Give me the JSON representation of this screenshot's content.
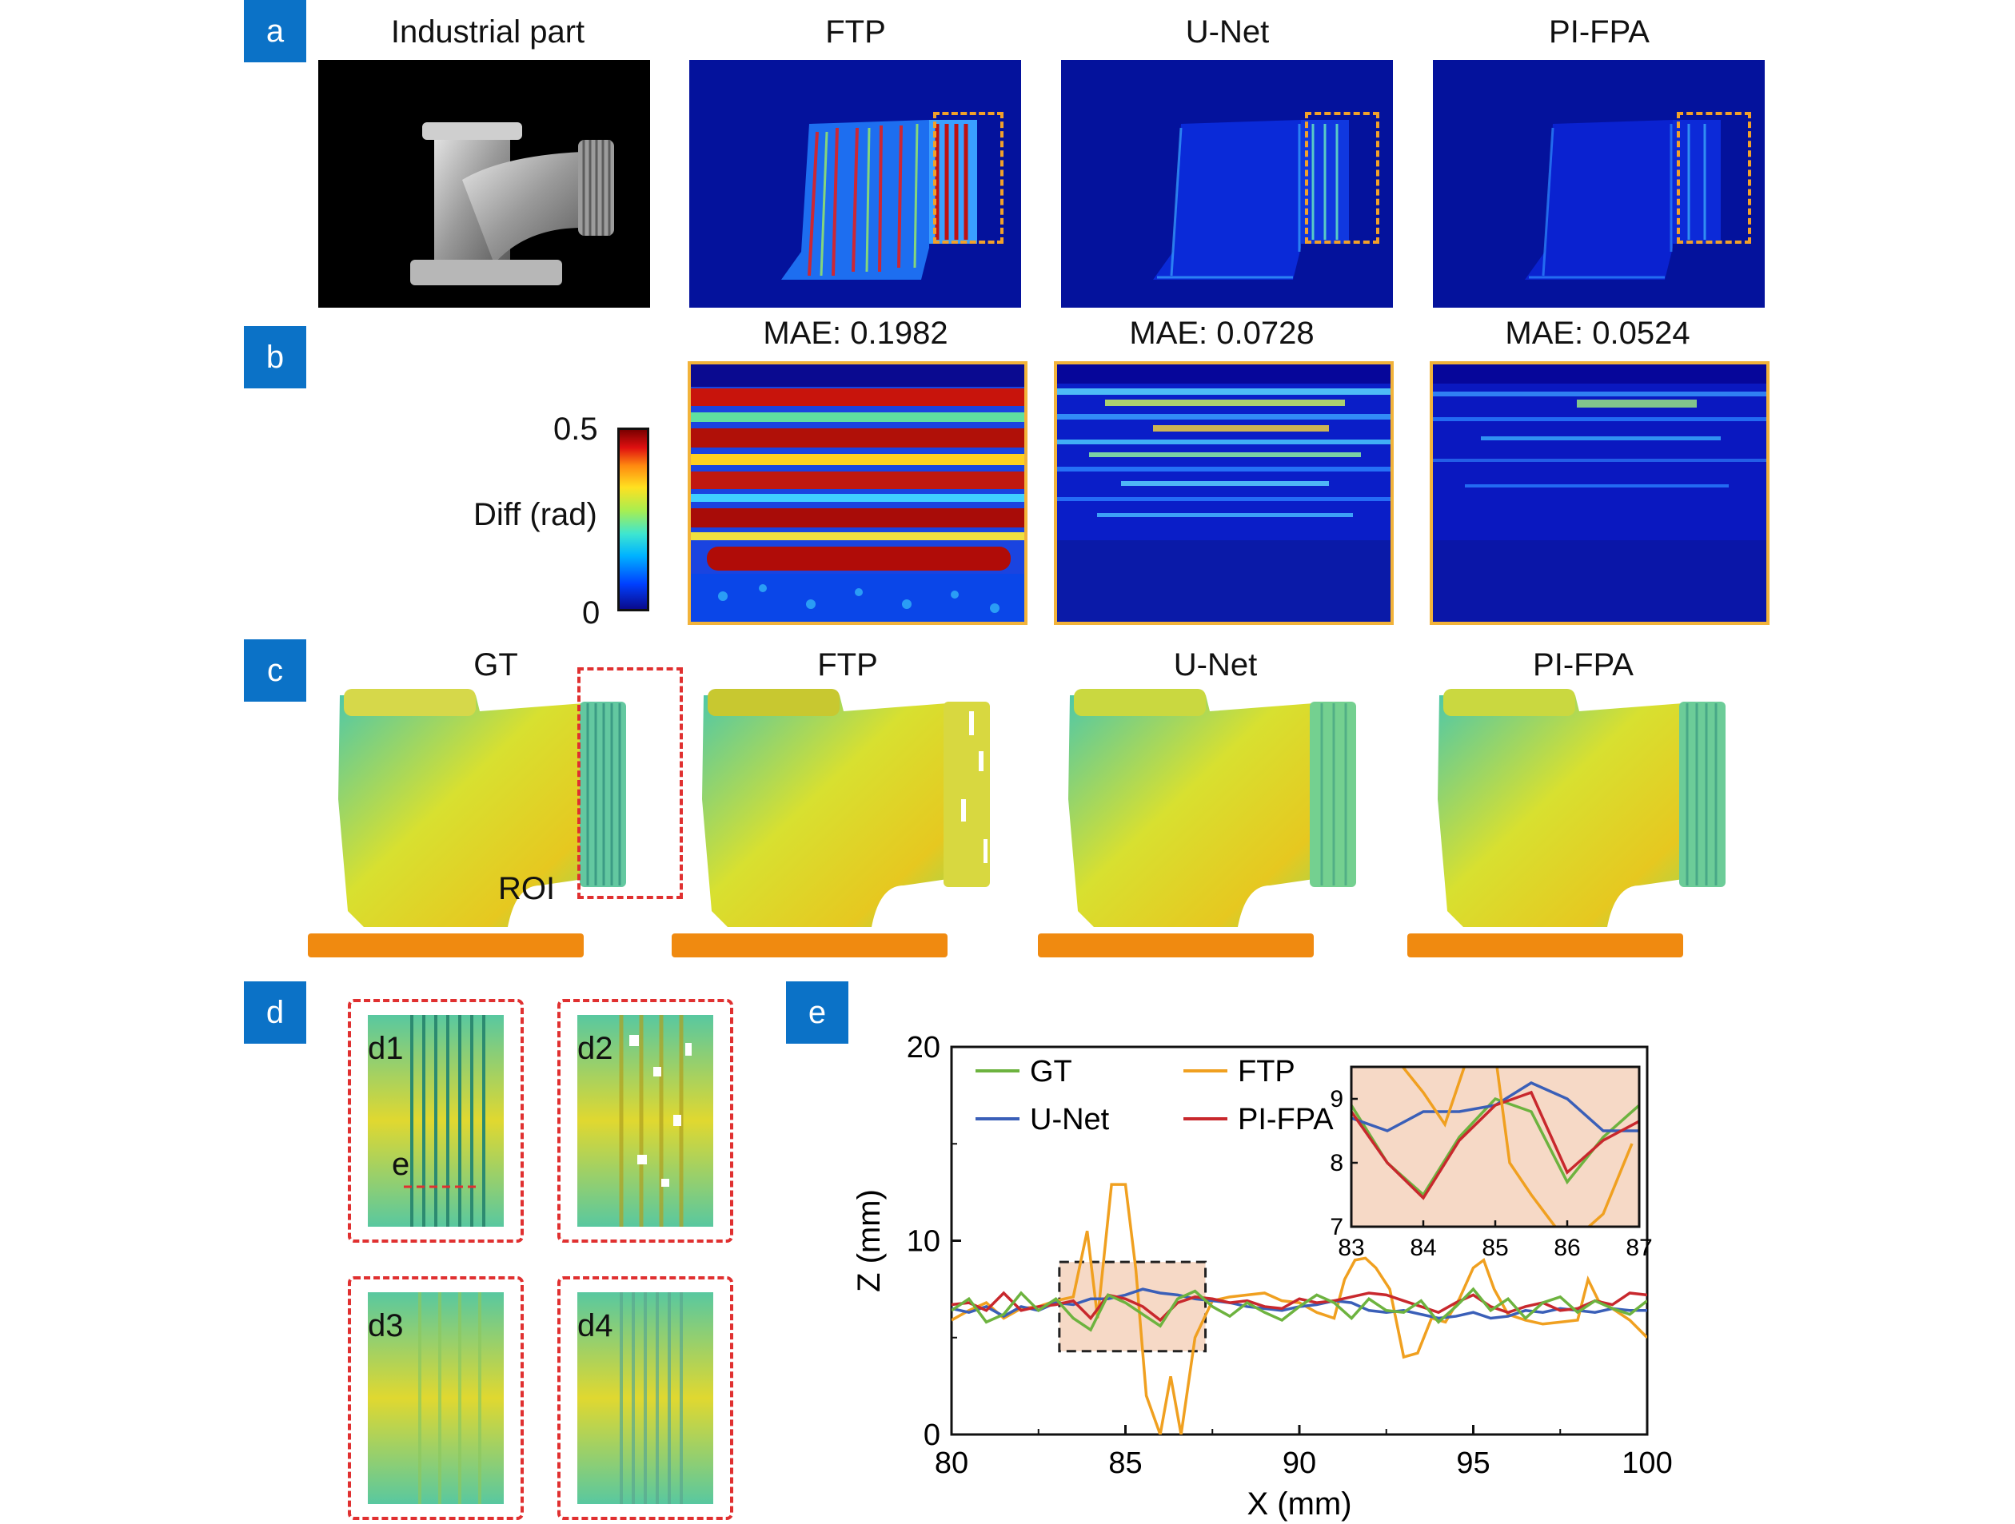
{
  "panels": {
    "a": {
      "tag": "a",
      "titles": [
        "Industrial part",
        "FTP",
        "U-Net",
        "PI-FPA"
      ]
    },
    "b": {
      "tag": "b",
      "mae": [
        "MAE: 0.1982",
        "MAE: 0.0728",
        "MAE: 0.0524"
      ],
      "colorbar": {
        "label": "Diff (rad)",
        "max": "0.5",
        "min": "0"
      }
    },
    "c": {
      "tag": "c",
      "titles": [
        "GT",
        "FTP",
        "U-Net",
        "PI-FPA"
      ],
      "roi_label": "ROI"
    },
    "d": {
      "tag": "d",
      "insets": [
        "d1",
        "d2",
        "d3",
        "d4"
      ],
      "profile_label": "e"
    },
    "e": {
      "tag": "e"
    }
  },
  "chart_data": {
    "type": "line",
    "xlabel": "X (mm)",
    "ylabel": "Z (mm)",
    "xlim": [
      80,
      100
    ],
    "ylim": [
      0,
      20
    ],
    "xticks": [
      "80",
      "85",
      "90",
      "95",
      "100"
    ],
    "yticks": [
      "0",
      "10",
      "20"
    ],
    "legend_position": "top-left",
    "colors": {
      "GT": "#6db33f",
      "FTP": "#f0a020",
      "U-Net": "#3a5fb8",
      "PI-FPA": "#c8282d"
    },
    "series": [
      {
        "name": "GT",
        "x": [
          80,
          80.5,
          81,
          81.5,
          82,
          82.5,
          83,
          83.5,
          84,
          84.5,
          85,
          85.5,
          86,
          86.5,
          87,
          87.5,
          88,
          88.5,
          89,
          89.5,
          90,
          90.5,
          91,
          91.5,
          92,
          92.5,
          93,
          93.5,
          94,
          94.5,
          95,
          95.5,
          96,
          96.5,
          97,
          97.5,
          98,
          98.5,
          99,
          99.5,
          100
        ],
        "y": [
          6.4,
          7.0,
          5.8,
          6.2,
          7.3,
          6.4,
          7.0,
          6.0,
          5.4,
          7.2,
          6.8,
          6.2,
          5.6,
          7.0,
          7.4,
          6.6,
          6.1,
          6.8,
          6.3,
          5.9,
          6.6,
          7.2,
          6.8,
          6.0,
          7.0,
          6.4,
          6.3,
          6.9,
          5.8,
          6.6,
          7.5,
          6.4,
          7.0,
          6.0,
          6.8,
          7.1,
          6.3,
          6.9,
          6.5,
          6.2,
          6.9
        ]
      },
      {
        "name": "FTP",
        "x": [
          80,
          80.5,
          81,
          81.5,
          82,
          82.5,
          83,
          83.5,
          83.9,
          84.2,
          84.6,
          85,
          85.3,
          85.6,
          86,
          86.3,
          86.6,
          87,
          87.5,
          88,
          88.5,
          89,
          89.5,
          90,
          90.5,
          91,
          91.3,
          91.6,
          91.9,
          92.2,
          92.6,
          93,
          93.4,
          93.8,
          94.2,
          94.6,
          95,
          95.3,
          95.6,
          96,
          96.5,
          97,
          97.5,
          98,
          98.3,
          98.6,
          99,
          99.5,
          100
        ],
        "y": [
          5.9,
          6.4,
          6.8,
          6.0,
          6.5,
          6.6,
          6.9,
          7.1,
          10.5,
          6.0,
          12.9,
          12.9,
          8.5,
          2.0,
          0,
          3.0,
          0,
          5.0,
          6.9,
          7.1,
          7.2,
          7.3,
          6.9,
          6.8,
          6.3,
          6.0,
          8.0,
          9.0,
          9.1,
          8.6,
          7.5,
          4.0,
          4.2,
          6.0,
          5.8,
          7.0,
          8.6,
          9.0,
          7.5,
          6.2,
          5.9,
          5.7,
          5.8,
          5.9,
          8.0,
          6.9,
          6.5,
          5.9,
          5.0
        ]
      },
      {
        "name": "U-Net",
        "x": [
          80,
          80.5,
          81,
          81.5,
          82,
          82.5,
          83,
          83.5,
          84,
          84.5,
          85,
          85.5,
          86,
          86.5,
          87,
          87.5,
          88,
          88.5,
          89,
          89.5,
          90,
          90.5,
          91,
          91.5,
          92,
          92.5,
          93,
          93.5,
          94,
          94.5,
          95,
          95.5,
          96,
          96.5,
          97,
          97.5,
          98,
          98.5,
          99,
          99.5,
          100
        ],
        "y": [
          6.5,
          6.3,
          6.6,
          6.1,
          6.6,
          6.4,
          6.8,
          6.7,
          7.0,
          7.0,
          7.2,
          7.5,
          7.3,
          7.2,
          7.0,
          6.9,
          6.8,
          6.6,
          6.5,
          6.4,
          6.6,
          6.7,
          6.9,
          6.8,
          6.4,
          6.3,
          6.4,
          6.2,
          6.0,
          6.1,
          6.3,
          6.0,
          6.1,
          6.4,
          6.3,
          6.5,
          6.4,
          6.3,
          6.5,
          6.4,
          6.4
        ]
      },
      {
        "name": "PI-FPA",
        "x": [
          80,
          80.5,
          81,
          81.5,
          82,
          82.5,
          83,
          83.5,
          84,
          84.5,
          85,
          85.5,
          86,
          86.5,
          87,
          87.5,
          88,
          88.5,
          89,
          89.5,
          90,
          90.5,
          91,
          91.5,
          92,
          92.5,
          93,
          93.5,
          94,
          94.5,
          95,
          95.5,
          96,
          96.5,
          97,
          97.5,
          98,
          98.5,
          99,
          99.5,
          100
        ],
        "y": [
          6.7,
          6.8,
          6.4,
          7.3,
          6.4,
          6.6,
          6.7,
          6.9,
          6.0,
          7.2,
          7.0,
          6.6,
          5.9,
          6.8,
          7.1,
          7.0,
          6.8,
          6.9,
          6.6,
          6.5,
          7.0,
          6.8,
          6.9,
          7.1,
          7.3,
          7.2,
          6.9,
          6.6,
          6.3,
          6.8,
          7.2,
          6.6,
          6.3,
          6.6,
          6.8,
          6.4,
          6.5,
          6.9,
          6.7,
          7.3,
          7.2
        ]
      }
    ],
    "roi": {
      "x": [
        83.1,
        87.3
      ],
      "y": [
        4.3,
        8.9
      ]
    },
    "inset": {
      "xlim": [
        83,
        87
      ],
      "ylim": [
        7,
        9.5
      ],
      "xticks": [
        "83",
        "84",
        "85",
        "86",
        "87"
      ],
      "yticks": [
        "7",
        "8",
        "9"
      ],
      "series": [
        {
          "name": "GT",
          "x": [
            83,
            83.5,
            84,
            84.5,
            85,
            85.5,
            86,
            86.5,
            87
          ],
          "y": [
            8.9,
            8.0,
            7.5,
            8.4,
            9.0,
            8.8,
            7.7,
            8.4,
            8.9
          ]
        },
        {
          "name": "U-Net",
          "x": [
            83,
            83.5,
            84,
            84.5,
            85,
            85.5,
            86,
            86.5,
            87
          ],
          "y": [
            8.7,
            8.5,
            8.8,
            8.8,
            8.9,
            9.25,
            9.0,
            8.5,
            8.5
          ]
        },
        {
          "name": "PI-FPA",
          "x": [
            83,
            83.5,
            84,
            84.5,
            85,
            85.5,
            86,
            86.5,
            87
          ],
          "y": [
            8.8,
            8.0,
            7.45,
            8.35,
            8.9,
            9.1,
            7.85,
            8.35,
            8.65
          ]
        },
        {
          "name": "FTP",
          "x": [
            83.1,
            83.5,
            84,
            84.3,
            84.6,
            84.9,
            85.0,
            85.2,
            85.5,
            85.9,
            86.2,
            86.5,
            86.9
          ],
          "y": [
            9.6,
            9.8,
            9.1,
            8.6,
            9.6,
            9.9,
            9.7,
            8.0,
            7.5,
            6.9,
            6.9,
            7.2,
            8.3
          ]
        }
      ]
    }
  }
}
